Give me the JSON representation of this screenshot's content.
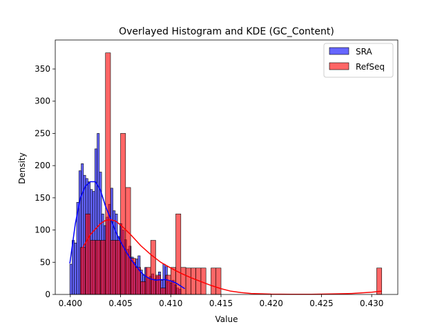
{
  "chart_data": {
    "type": "histogram",
    "title": "Overlayed Histogram and KDE (GC_Content)",
    "xlabel": "Value",
    "ylabel": "Density",
    "xlim": [
      0.3985,
      0.4326
    ],
    "ylim": [
      0,
      395
    ],
    "xticks": [
      0.4,
      0.405,
      0.41,
      0.415,
      0.42,
      0.425,
      0.43
    ],
    "xtick_labels": [
      "0.400",
      "0.405",
      "0.410",
      "0.415",
      "0.420",
      "0.425",
      "0.430"
    ],
    "yticks": [
      0,
      50,
      100,
      150,
      200,
      250,
      300,
      350
    ],
    "ytick_labels": [
      "0",
      "50",
      "100",
      "150",
      "200",
      "250",
      "300",
      "350"
    ],
    "grid": false,
    "legend_position": "top-right",
    "series": [
      {
        "name": "SRA",
        "color": "#0000ff",
        "bin_start": 0.39995,
        "bin_width": 0.000226,
        "values": [
          47,
          84,
          80,
          143,
          192,
          203,
          185,
          180,
          175,
          163,
          160,
          226,
          250,
          190,
          125,
          107,
          120,
          140,
          165,
          130,
          125,
          90,
          110,
          100,
          85,
          70,
          75,
          58,
          50,
          55,
          60,
          38,
          30,
          42,
          25,
          28,
          32,
          24,
          28,
          35,
          22,
          47,
          43,
          20,
          18,
          22,
          15,
          10,
          8
        ],
        "kde": [
          [
            0.39995,
            48
          ],
          [
            0.4005,
            110
          ],
          [
            0.401,
            150
          ],
          [
            0.4015,
            168
          ],
          [
            0.402,
            175
          ],
          [
            0.4025,
            175
          ],
          [
            0.403,
            162
          ],
          [
            0.4035,
            137
          ],
          [
            0.404,
            118
          ],
          [
            0.4045,
            98
          ],
          [
            0.405,
            82
          ],
          [
            0.4055,
            68
          ],
          [
            0.406,
            55
          ],
          [
            0.4065,
            45
          ],
          [
            0.407,
            35
          ],
          [
            0.4075,
            28
          ],
          [
            0.408,
            24
          ],
          [
            0.4085,
            22
          ],
          [
            0.409,
            23
          ],
          [
            0.4095,
            23
          ],
          [
            0.41,
            21
          ],
          [
            0.4105,
            18
          ],
          [
            0.411,
            13
          ],
          [
            0.4114,
            9
          ]
        ]
      },
      {
        "name": "RefSeq",
        "color": "#ff0000",
        "bin_start": 0.401,
        "bin_width": 0.0005,
        "values": [
          73,
          125,
          84,
          84,
          84,
          375,
          84,
          84,
          250,
          166,
          84,
          84,
          84,
          41,
          41,
          84,
          41,
          41,
          41,
          41,
          41,
          41,
          41,
          41,
          41,
          0,
          41,
          41,
          0,
          0,
          0,
          0,
          0,
          0,
          0,
          0,
          0,
          0,
          0,
          0,
          0,
          0,
          0,
          0,
          0,
          0,
          0,
          0,
          0,
          0,
          0,
          0,
          0,
          0,
          0,
          0,
          0,
          0,
          0,
          41
        ],
        "bin_overrides": [
          [
            0.41,
            42
          ],
          [
            0.4105,
            125
          ],
          [
            0.411,
            42
          ],
          [
            0.4075,
            42
          ],
          [
            0.407,
            20
          ],
          [
            0.406,
            56
          ],
          [
            0.4065,
            42
          ],
          [
            0.408,
            84
          ],
          [
            0.4085,
            30
          ],
          [
            0.409,
            10
          ],
          [
            0.4095,
            30
          ]
        ],
        "kde": [
          [
            0.4012,
            72
          ],
          [
            0.402,
            93
          ],
          [
            0.403,
            110
          ],
          [
            0.4035,
            115
          ],
          [
            0.404,
            116
          ],
          [
            0.4045,
            114
          ],
          [
            0.405,
            108
          ],
          [
            0.406,
            93
          ],
          [
            0.407,
            76
          ],
          [
            0.408,
            62
          ],
          [
            0.409,
            50
          ],
          [
            0.41,
            41
          ],
          [
            0.411,
            33
          ],
          [
            0.412,
            26
          ],
          [
            0.413,
            20
          ],
          [
            0.414,
            14
          ],
          [
            0.415,
            9
          ],
          [
            0.416,
            5
          ],
          [
            0.417,
            3
          ],
          [
            0.418,
            1.5
          ],
          [
            0.42,
            0.5
          ],
          [
            0.422,
            0.3
          ],
          [
            0.424,
            0.3
          ],
          [
            0.426,
            0.7
          ],
          [
            0.428,
            1.5
          ],
          [
            0.43,
            3.5
          ],
          [
            0.431,
            5
          ]
        ]
      }
    ]
  }
}
